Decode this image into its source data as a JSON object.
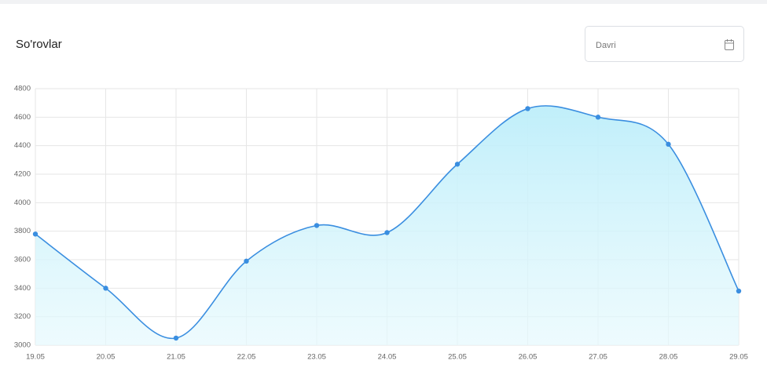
{
  "chart_data": {
    "type": "line",
    "title": "So'rovlar",
    "categories": [
      "19.05",
      "20.05",
      "21.05",
      "22.05",
      "23.05",
      "24.05",
      "25.05",
      "26.05",
      "27.05",
      "28.05",
      "29.05"
    ],
    "series": [
      {
        "name": "So'rovlar",
        "color": "#3a8ee0",
        "values": [
          3780,
          3400,
          3050,
          3590,
          3840,
          3790,
          4270,
          4660,
          4600,
          4410,
          3380
        ]
      }
    ],
    "ylim": [
      3000,
      4800
    ],
    "yticks": [
      3000,
      3200,
      3400,
      3600,
      3800,
      4000,
      4200,
      4400,
      4600,
      4800
    ],
    "grid": true,
    "fill": true
  },
  "date_filter": {
    "placeholder": "Davri"
  }
}
